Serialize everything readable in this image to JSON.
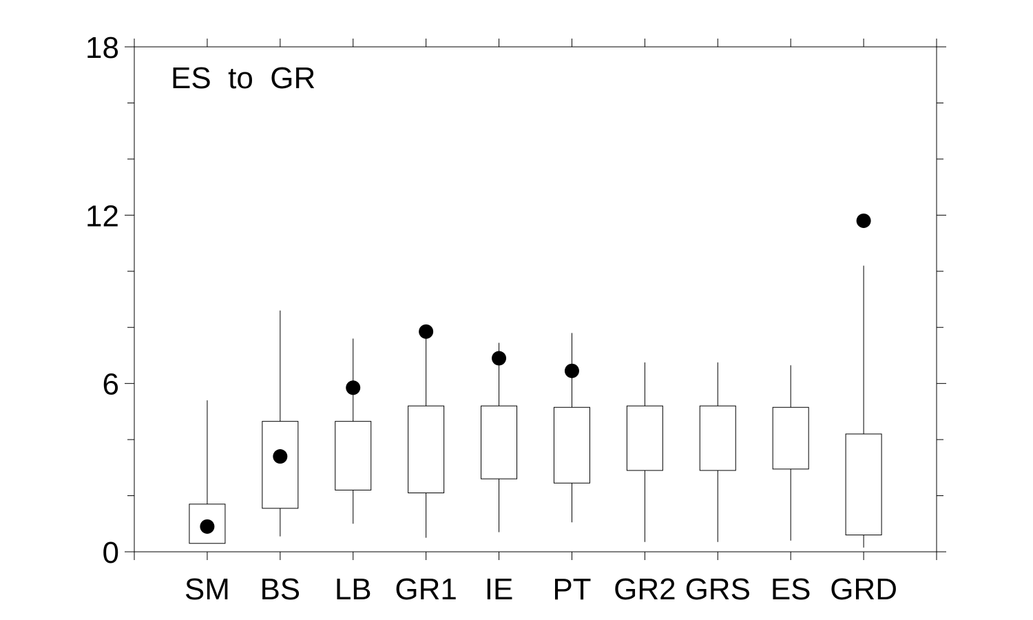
{
  "chart_data": {
    "type": "boxplot",
    "annotation": "ES  to  GR",
    "title": "",
    "xlabel": "",
    "ylabel": "",
    "ylim": [
      0,
      18
    ],
    "yticks": [
      0,
      6,
      12,
      18
    ],
    "yminor_step": 2,
    "grid": false,
    "categories": [
      "SM",
      "BS",
      "LB",
      "GR1",
      "IE",
      "PT",
      "GR2",
      "GRS",
      "ES",
      "GRD"
    ],
    "boxes": [
      {
        "whisker_low": 0.3,
        "q1": 0.3,
        "q3": 1.7,
        "whisker_high": 5.4
      },
      {
        "whisker_low": 0.55,
        "q1": 1.55,
        "q3": 4.65,
        "whisker_high": 8.6
      },
      {
        "whisker_low": 1.0,
        "q1": 2.2,
        "q3": 4.65,
        "whisker_high": 7.6
      },
      {
        "whisker_low": 0.5,
        "q1": 2.1,
        "q3": 5.2,
        "whisker_high": 7.8
      },
      {
        "whisker_low": 0.7,
        "q1": 2.6,
        "q3": 5.2,
        "whisker_high": 7.45
      },
      {
        "whisker_low": 1.05,
        "q1": 2.45,
        "q3": 5.15,
        "whisker_high": 7.8
      },
      {
        "whisker_low": 0.35,
        "q1": 2.9,
        "q3": 5.2,
        "whisker_high": 6.75
      },
      {
        "whisker_low": 0.35,
        "q1": 2.9,
        "q3": 5.2,
        "whisker_high": 6.75
      },
      {
        "whisker_low": 0.4,
        "q1": 2.95,
        "q3": 5.15,
        "whisker_high": 6.65
      },
      {
        "whisker_low": 0.15,
        "q1": 0.6,
        "q3": 4.2,
        "whisker_high": 10.2
      }
    ],
    "points": [
      0.9,
      3.4,
      5.85,
      7.85,
      6.9,
      6.45,
      null,
      null,
      null,
      11.8
    ],
    "colors": {
      "box": "#ffffff",
      "line": "#000000",
      "point": "#000000"
    }
  }
}
